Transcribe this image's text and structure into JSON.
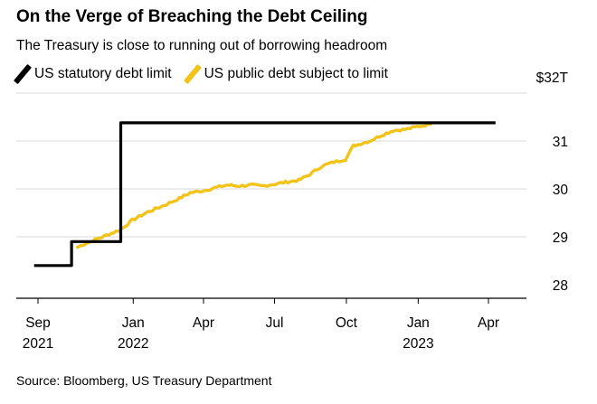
{
  "title": "On the Verge of Breaching the Debt Ceiling",
  "subtitle": "The Treasury is close to running out of borrowing headroom",
  "source": "Source: Bloomberg, US Treasury Department",
  "colors": {
    "limit": "#000000",
    "debt": "#f2c41b",
    "grid": "#d9d9d9",
    "axis": "#000000"
  },
  "legend": [
    {
      "label": "US statutory debt limit",
      "color": "#000000"
    },
    {
      "label": "US public debt subject to limit",
      "color": "#f2c41b"
    }
  ],
  "chart_data": {
    "type": "line",
    "title": "On the Verge of Breaching the Debt Ceiling",
    "subtitle": "The Treasury is close to running out of borrowing headroom",
    "xlabel": "",
    "ylabel": "",
    "yunit": "$ trillions",
    "ylim": [
      27.6,
      32.1
    ],
    "yticks": [
      {
        "value": 28,
        "label": "28"
      },
      {
        "value": 29,
        "label": "29"
      },
      {
        "value": 30,
        "label": "30"
      },
      {
        "value": 31,
        "label": "31"
      },
      {
        "value": 32,
        "label": "$32T"
      }
    ],
    "xlim": [
      "2021-08-15",
      "2023-06-01"
    ],
    "xticks": [
      {
        "date": "2021-09-01",
        "label": "Sep",
        "year": "2021"
      },
      {
        "date": "2022-01-01",
        "label": "Jan",
        "year": "2022"
      },
      {
        "date": "2022-04-01",
        "label": "Apr",
        "year": ""
      },
      {
        "date": "2022-07-01",
        "label": "Jul",
        "year": ""
      },
      {
        "date": "2022-10-01",
        "label": "Oct",
        "year": ""
      },
      {
        "date": "2023-01-01",
        "label": "Jan",
        "year": "2023"
      },
      {
        "date": "2023-04-01",
        "label": "Apr",
        "year": ""
      }
    ],
    "grid": true,
    "legend_position": "top-left",
    "series": [
      {
        "name": "US statutory debt limit",
        "step": true,
        "color": "#000000",
        "points": [
          [
            "2021-08-27",
            28.4
          ],
          [
            "2021-10-14",
            28.9
          ],
          [
            "2021-12-16",
            31.38
          ],
          [
            "2023-04-10",
            31.38
          ]
        ]
      },
      {
        "name": "US public debt subject to limit",
        "step": false,
        "color": "#f2c41b",
        "points": [
          [
            "2021-10-20",
            28.77
          ],
          [
            "2021-10-29",
            28.84
          ],
          [
            "2021-12-16",
            29.15
          ],
          [
            "2021-12-31",
            29.35
          ],
          [
            "2022-01-20",
            29.52
          ],
          [
            "2022-02-10",
            29.66
          ],
          [
            "2022-03-01",
            29.8
          ],
          [
            "2022-03-15",
            29.92
          ],
          [
            "2022-03-31",
            29.96
          ],
          [
            "2022-04-15",
            30.02
          ],
          [
            "2022-05-01",
            30.08
          ],
          [
            "2022-05-15",
            30.06
          ],
          [
            "2022-06-01",
            30.08
          ],
          [
            "2022-06-15",
            30.06
          ],
          [
            "2022-07-01",
            30.1
          ],
          [
            "2022-07-15",
            30.14
          ],
          [
            "2022-08-01",
            30.18
          ],
          [
            "2022-08-15",
            30.3
          ],
          [
            "2022-08-31",
            30.48
          ],
          [
            "2022-09-15",
            30.56
          ],
          [
            "2022-09-30",
            30.62
          ],
          [
            "2022-10-10",
            30.9
          ],
          [
            "2022-10-31",
            31.0
          ],
          [
            "2022-11-15",
            31.12
          ],
          [
            "2022-11-30",
            31.22
          ],
          [
            "2022-12-15",
            31.24
          ],
          [
            "2022-12-31",
            31.3
          ],
          [
            "2023-01-10",
            31.33
          ],
          [
            "2023-01-19",
            31.38
          ]
        ]
      }
    ]
  }
}
